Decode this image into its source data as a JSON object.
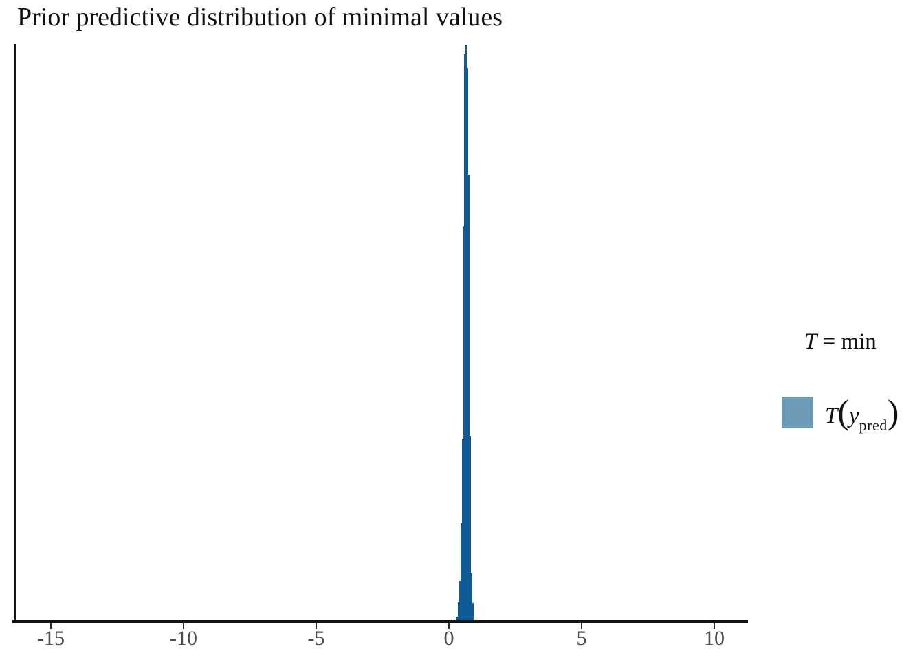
{
  "chart_data": {
    "type": "histogram",
    "title": "Prior predictive distribution of minimal values",
    "xlabel": "",
    "ylabel": "",
    "xlim": [
      -16.35,
      10.98
    ],
    "x_ticks": [
      {
        "v": -15,
        "label": "-15"
      },
      {
        "v": -10,
        "label": "-10"
      },
      {
        "v": -5,
        "label": "-5"
      },
      {
        "v": 0,
        "label": "0"
      },
      {
        "v": 5,
        "label": "5"
      },
      {
        "v": 10,
        "label": "10"
      }
    ],
    "grid": false,
    "legend_position": "right-middle",
    "series_name": "T(y_pred)",
    "y_scale": "relative density (max bin = 1.0, y axis unlabeled)",
    "bins": [
      {
        "x0": 0.259,
        "x1": 0.337,
        "h": 0.008
      },
      {
        "x0": 0.337,
        "x1": 0.389,
        "h": 0.033
      },
      {
        "x0": 0.389,
        "x1": 0.44,
        "h": 0.07
      },
      {
        "x0": 0.44,
        "x1": 0.492,
        "h": 0.17
      },
      {
        "x0": 0.492,
        "x1": 0.531,
        "h": 0.316
      },
      {
        "x0": 0.531,
        "x1": 0.57,
        "h": 0.685
      },
      {
        "x0": 0.57,
        "x1": 0.609,
        "h": 0.983
      },
      {
        "x0": 0.609,
        "x1": 0.674,
        "h": 1.0
      },
      {
        "x0": 0.674,
        "x1": 0.725,
        "h": 0.96
      },
      {
        "x0": 0.725,
        "x1": 0.764,
        "h": 0.775
      },
      {
        "x0": 0.764,
        "x1": 0.816,
        "h": 0.322
      },
      {
        "x0": 0.816,
        "x1": 0.868,
        "h": 0.083
      },
      {
        "x0": 0.868,
        "x1": 0.92,
        "h": 0.032
      },
      {
        "x0": 0.92,
        "x1": 0.959,
        "h": 0.008
      }
    ],
    "colors": {
      "bar_fill": "#0f5b96",
      "legend_key_fill": "#6b9ab4",
      "axis_line": "#141414",
      "tick_label": "#4d4d4d",
      "title_text": "#111111"
    }
  },
  "legend": {
    "title_t": "T",
    "title_rest": " = min",
    "label_t": "T",
    "label_open": "(",
    "label_y": "y",
    "label_sub": "pred",
    "label_close": ")"
  }
}
